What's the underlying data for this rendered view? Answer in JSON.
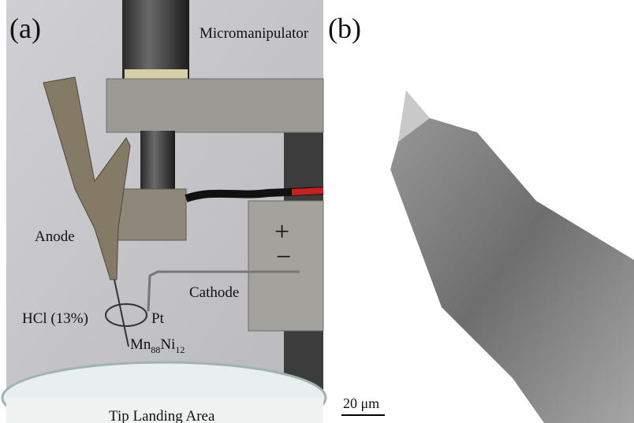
{
  "panel_a": {
    "label": "(a)",
    "micromanipulator": "Micromanipulator",
    "anode": "Anode",
    "plus": "+",
    "minus": "−",
    "cathode": "Cathode",
    "electrolyte": "HCl (13%)",
    "pt": "Pt",
    "sample": {
      "el1": "Mn",
      "sub1": "88",
      "el2": "Ni",
      "sub2": "12"
    },
    "landing": "Tip Landing Area"
  },
  "panel_b": {
    "label": "(b)",
    "scale_bar": "20 μm"
  }
}
